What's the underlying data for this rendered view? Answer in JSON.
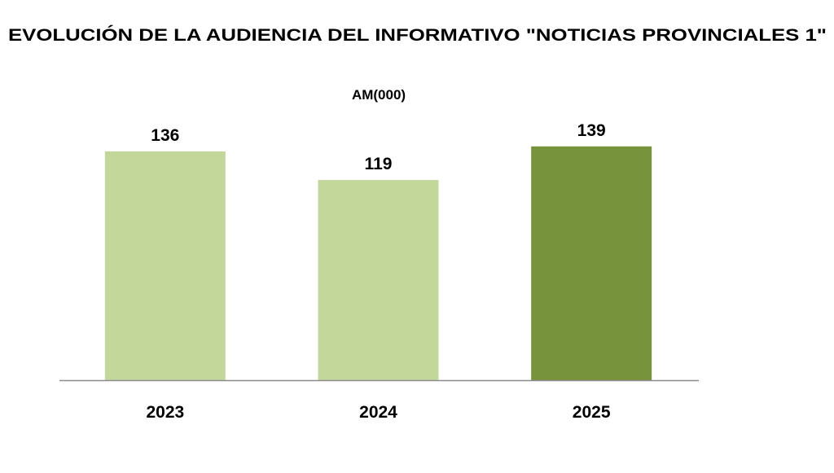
{
  "chart_data": {
    "type": "bar",
    "title": "EVOLUCIÓN DE LA AUDIENCIA DEL INFORMATIVO \"NOTICIAS PROVINCIALES 1\"",
    "subtitle": "AM(000)",
    "categories": [
      "2023",
      "2024",
      "2025"
    ],
    "values": [
      136,
      119,
      139
    ],
    "data_labels": [
      "136",
      "119",
      "139"
    ],
    "colors": [
      "#c4d79b",
      "#c4d79b",
      "#77933c"
    ],
    "xlabel": "",
    "ylabel": "",
    "ylim": [
      0,
      160
    ],
    "grid": false,
    "legend": "none"
  }
}
